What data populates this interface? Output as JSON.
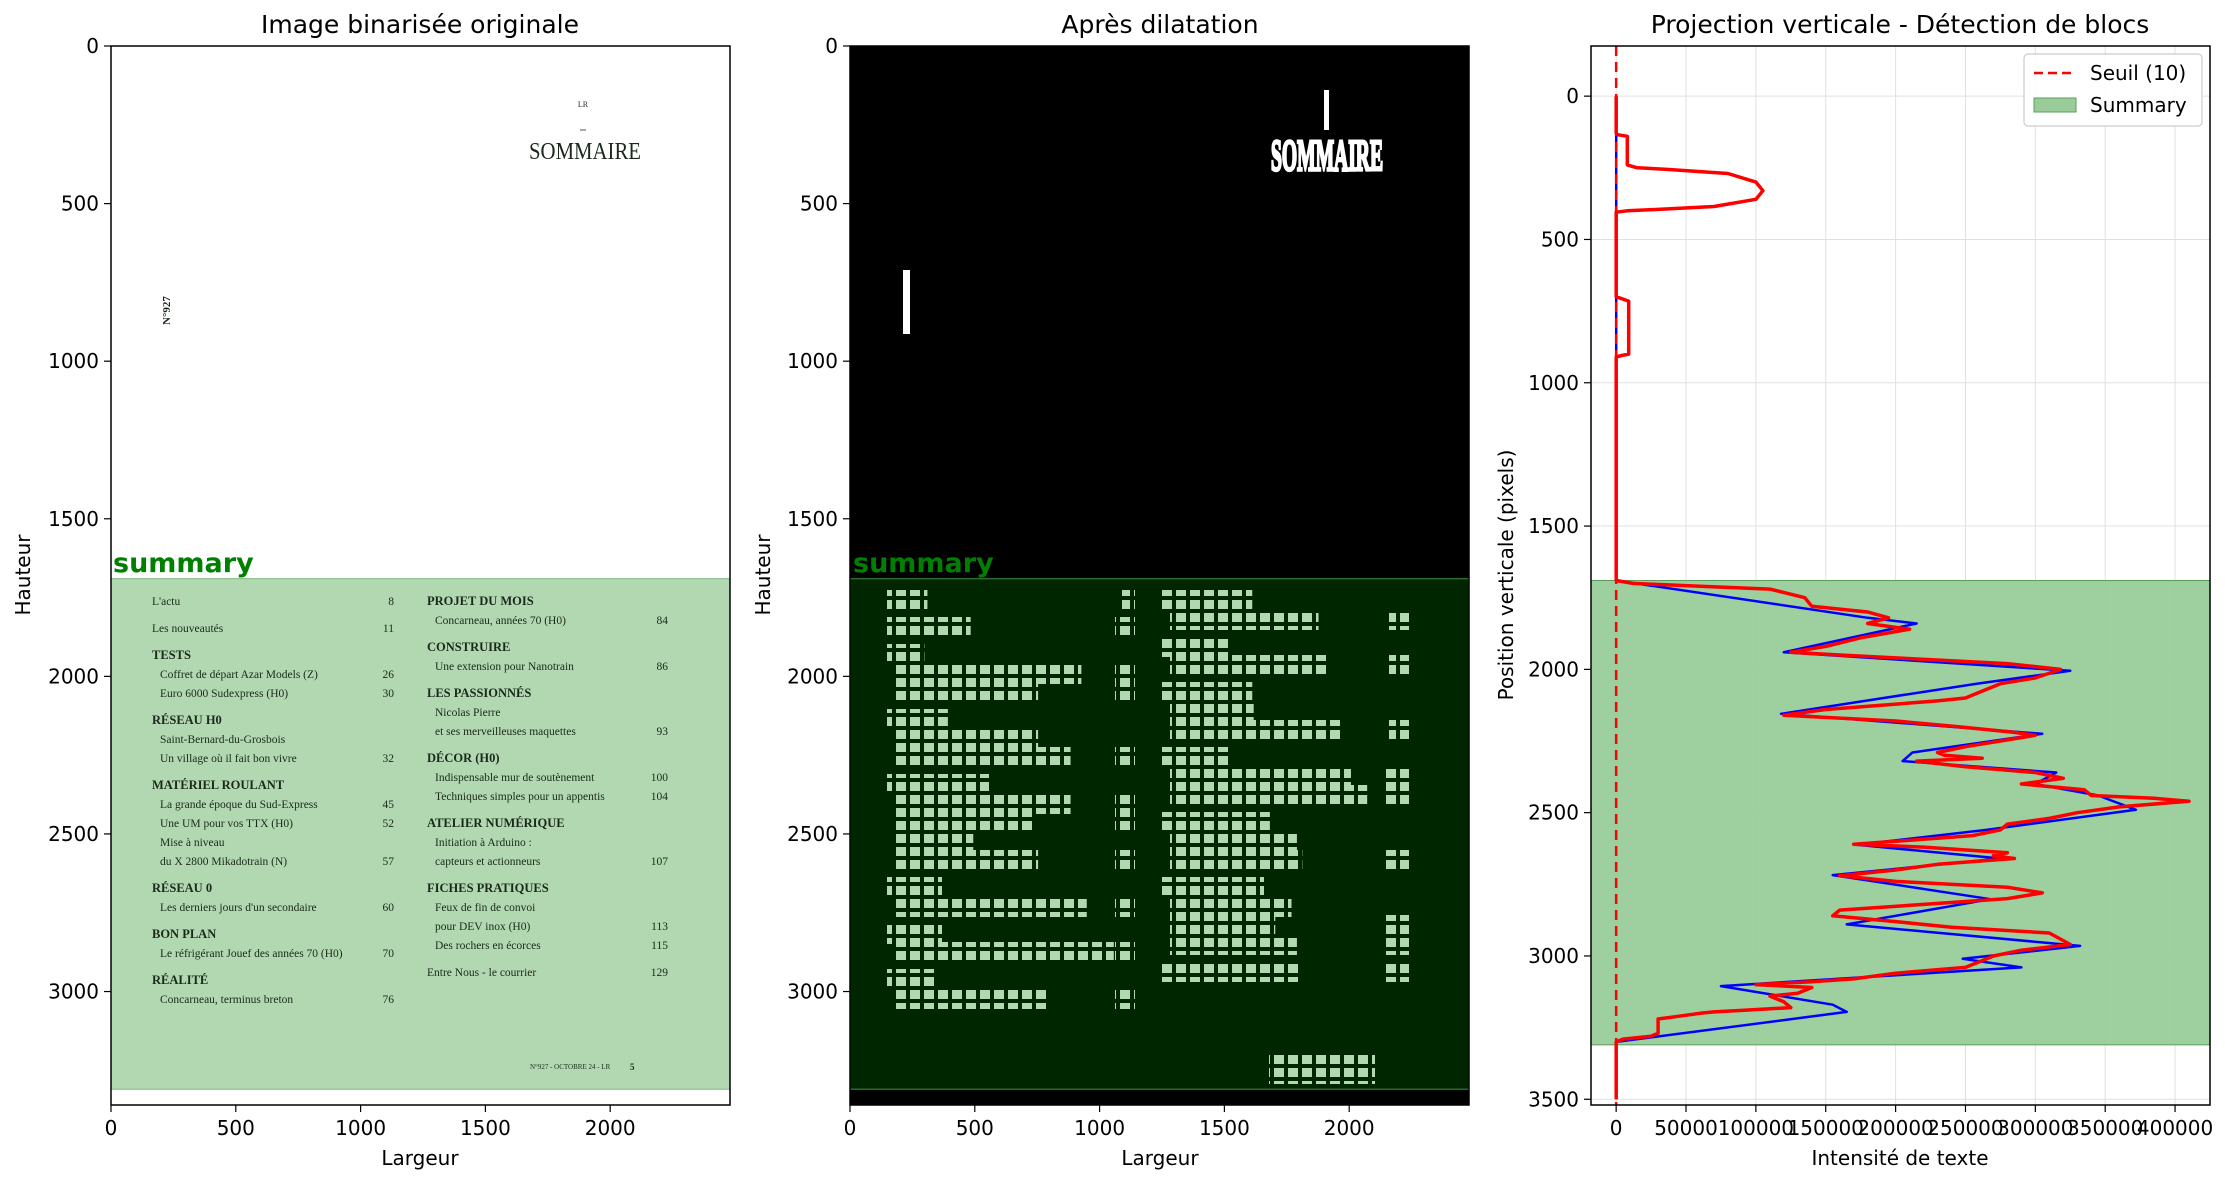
{
  "chart_data": [
    {
      "type": "image",
      "title": "Image binarisée originale",
      "xlabel": "Largeur",
      "ylabel": "Hauteur",
      "xlim": [
        0,
        2480
      ],
      "ylim": [
        3360,
        0
      ],
      "xticks": [
        "0",
        "500",
        "1000",
        "1500",
        "2000"
      ],
      "yticks": [
        "0",
        "500",
        "1000",
        "1500",
        "2000",
        "2500",
        "3000"
      ],
      "region": {
        "label": "summary",
        "y_start": 1690,
        "y_end": 3310,
        "color": "#b2d8b2"
      },
      "page": {
        "lr": "LR",
        "heading": "SOMMAIRE",
        "issue": "N°927",
        "footer": "N°927 - OCTOBRE 24 - LR",
        "footer_page": "5",
        "left_column": [
          {
            "kind": "entry",
            "text": "L'actu",
            "page": "8"
          },
          {
            "kind": "entry",
            "text": "Les nouveautés",
            "page": "11"
          },
          {
            "kind": "section",
            "text": "TESTS"
          },
          {
            "kind": "item",
            "text": "Coffret de départ Azar Models (Z)",
            "page": "26"
          },
          {
            "kind": "item",
            "text": "Euro 6000 Sudexpress (H0)",
            "page": "30"
          },
          {
            "kind": "section",
            "text": "RÉSEAU H0"
          },
          {
            "kind": "item",
            "text": "Saint-Bernard-du-Grosbois",
            "page": ""
          },
          {
            "kind": "item",
            "text": "Un village où il fait bon vivre",
            "page": "32"
          },
          {
            "kind": "section",
            "text": "MATÉRIEL ROULANT"
          },
          {
            "kind": "item",
            "text": "La grande époque du Sud-Express",
            "page": "45"
          },
          {
            "kind": "item",
            "text": "Une UM pour vos TTX (H0)",
            "page": "52"
          },
          {
            "kind": "item",
            "text": "Mise à niveau",
            "page": ""
          },
          {
            "kind": "item",
            "text": "du X 2800 Mikadotrain (N)",
            "page": "57"
          },
          {
            "kind": "section",
            "text": "RÉSEAU 0"
          },
          {
            "kind": "item",
            "text": "Les derniers jours d'un secondaire",
            "page": "60"
          },
          {
            "kind": "section",
            "text": "BON PLAN"
          },
          {
            "kind": "item",
            "text": "Le réfrigérant Jouef des années 70 (H0)",
            "page": "70"
          },
          {
            "kind": "section",
            "text": "RÉALITÉ"
          },
          {
            "kind": "item",
            "text": "Concarneau, terminus breton",
            "page": "76"
          }
        ],
        "right_column": [
          {
            "kind": "section",
            "text": "PROJET DU MOIS"
          },
          {
            "kind": "item",
            "text": "Concarneau, années 70 (H0)",
            "page": "84"
          },
          {
            "kind": "section",
            "text": "CONSTRUIRE"
          },
          {
            "kind": "item",
            "text": "Une extension pour Nanotrain",
            "page": "86"
          },
          {
            "kind": "section",
            "text": "LES PASSIONNÉS"
          },
          {
            "kind": "item",
            "text": "Nicolas Pierre",
            "page": ""
          },
          {
            "kind": "item",
            "text": "et ses merveilleuses maquettes",
            "page": "93"
          },
          {
            "kind": "section",
            "text": "DÉCOR (H0)"
          },
          {
            "kind": "item",
            "text": "Indispensable mur de soutènement",
            "page": "100"
          },
          {
            "kind": "item",
            "text": "Techniques simples pour un appentis",
            "page": "104"
          },
          {
            "kind": "section",
            "text": "ATELIER NUMÉRIQUE"
          },
          {
            "kind": "item",
            "text": "Initiation à Arduino :",
            "page": ""
          },
          {
            "kind": "item",
            "text": "capteurs et actionneurs",
            "page": "107"
          },
          {
            "kind": "section",
            "text": "FICHES PRATIQUES"
          },
          {
            "kind": "item",
            "text": "Feux de fin de convoi",
            "page": ""
          },
          {
            "kind": "item",
            "text": "pour DEV inox (H0)",
            "page": "113"
          },
          {
            "kind": "item",
            "text": "Des rochers en écorces",
            "page": "115"
          },
          {
            "kind": "entry",
            "text": "Entre Nous - le courrier",
            "page": "129"
          }
        ]
      }
    },
    {
      "type": "image",
      "title": "Après dilatation",
      "xlabel": "Largeur",
      "ylabel": "Hauteur",
      "xlim": [
        0,
        2480
      ],
      "ylim": [
        3360,
        0
      ],
      "xticks": [
        "0",
        "500",
        "1000",
        "1500",
        "2000"
      ],
      "yticks": [
        "0",
        "500",
        "1000",
        "1500",
        "2000",
        "2500",
        "3000"
      ],
      "region": {
        "label": "summary",
        "y_start": 1690,
        "y_end": 3310,
        "color": "#002600"
      },
      "heading": "SOMMAIRE"
    },
    {
      "type": "line",
      "title": "Projection verticale - Détection de blocs",
      "xlabel": "Intensité de texte",
      "ylabel": "Position verticale (pixels)",
      "xlim": [
        -18000,
        425000
      ],
      "ylim": [
        3520,
        -175
      ],
      "xticks": [
        0,
        50000,
        100000,
        150000,
        200000,
        250000,
        300000,
        350000,
        400000
      ],
      "yticks": [
        0,
        500,
        1000,
        1500,
        2000,
        2500,
        3000,
        3500
      ],
      "grid": true,
      "legend_position": "top-right",
      "threshold": {
        "name": "Seuil (10)",
        "value": 10,
        "color": "#ff0000"
      },
      "block": {
        "name": "Summary",
        "y_start": 1690,
        "y_end": 3310,
        "color": "#99cc99"
      },
      "series": [
        {
          "color": "#ff0000",
          "points": [
            [
              0,
              0
            ],
            [
              0,
              130
            ],
            [
              1500,
              135
            ],
            [
              8000,
              140
            ],
            [
              8000,
              240
            ],
            [
              15000,
              250
            ],
            [
              35000,
              255
            ],
            [
              80000,
              270
            ],
            [
              100000,
              300
            ],
            [
              105000,
              330
            ],
            [
              100000,
              360
            ],
            [
              70000,
              385
            ],
            [
              30000,
              395
            ],
            [
              8000,
              400
            ],
            [
              0,
              405
            ],
            [
              0,
              700
            ],
            [
              3000,
              705
            ],
            [
              9000,
              715
            ],
            [
              9000,
              900
            ],
            [
              4000,
              905
            ],
            [
              0,
              910
            ],
            [
              0,
              1690
            ],
            [
              12000,
              1700
            ],
            [
              60000,
              1710
            ],
            [
              110000,
              1720
            ],
            [
              135000,
              1750
            ],
            [
              140000,
              1780
            ],
            [
              180000,
              1800
            ],
            [
              195000,
              1820
            ],
            [
              180000,
              1840
            ],
            [
              210000,
              1860
            ],
            [
              175000,
              1890
            ],
            [
              150000,
              1920
            ],
            [
              125000,
              1940
            ],
            [
              160000,
              1950
            ],
            [
              200000,
              1960
            ],
            [
              280000,
              1980
            ],
            [
              318000,
              2000
            ],
            [
              300000,
              2030
            ],
            [
              275000,
              2050
            ],
            [
              260000,
              2080
            ],
            [
              250000,
              2100
            ],
            [
              230000,
              2110
            ],
            [
              150000,
              2140
            ],
            [
              120000,
              2160
            ],
            [
              200000,
              2180
            ],
            [
              245000,
              2200
            ],
            [
              285000,
              2220
            ],
            [
              300000,
              2230
            ],
            [
              275000,
              2250
            ],
            [
              250000,
              2270
            ],
            [
              230000,
              2290
            ],
            [
              235000,
              2300
            ],
            [
              262000,
              2310
            ],
            [
              215000,
              2320
            ],
            [
              250000,
              2340
            ],
            [
              300000,
              2360
            ],
            [
              320000,
              2380
            ],
            [
              290000,
              2400
            ],
            [
              335000,
              2420
            ],
            [
              340000,
              2440
            ],
            [
              385000,
              2450
            ],
            [
              410000,
              2460
            ],
            [
              360000,
              2480
            ],
            [
              330000,
              2500
            ],
            [
              310000,
              2520
            ],
            [
              280000,
              2540
            ],
            [
              275000,
              2560
            ],
            [
              255000,
              2580
            ],
            [
              200000,
              2600
            ],
            [
              170000,
              2610
            ],
            [
              220000,
              2620
            ],
            [
              280000,
              2640
            ],
            [
              270000,
              2650
            ],
            [
              285000,
              2660
            ],
            [
              230000,
              2680
            ],
            [
              200000,
              2700
            ],
            [
              160000,
              2720
            ],
            [
              200000,
              2740
            ],
            [
              280000,
              2760
            ],
            [
              305000,
              2780
            ],
            [
              280000,
              2800
            ],
            [
              220000,
              2820
            ],
            [
              160000,
              2840
            ],
            [
              155000,
              2860
            ],
            [
              200000,
              2880
            ],
            [
              240000,
              2900
            ],
            [
              310000,
              2920
            ],
            [
              325000,
              2960
            ],
            [
              290000,
              2980
            ],
            [
              270000,
              3000
            ],
            [
              260000,
              3020
            ],
            [
              250000,
              3040
            ],
            [
              200000,
              3060
            ],
            [
              170000,
              3080
            ],
            [
              140000,
              3090
            ],
            [
              100000,
              3100
            ],
            [
              140000,
              3110
            ],
            [
              130000,
              3130
            ],
            [
              110000,
              3140
            ],
            [
              120000,
              3160
            ],
            [
              125000,
              3180
            ],
            [
              90000,
              3190
            ],
            [
              70000,
              3195
            ],
            [
              60000,
              3200
            ],
            [
              45000,
              3210
            ],
            [
              30000,
              3220
            ],
            [
              30000,
              3270
            ],
            [
              25000,
              3280
            ],
            [
              5000,
              3290
            ],
            [
              0,
              3300
            ],
            [
              0,
              3500
            ]
          ]
        },
        {
          "color": "#0000ff",
          "points": [
            [
              0,
              0
            ],
            [
              0,
              1690
            ],
            [
              180000,
              1820
            ],
            [
              215000,
              1840
            ],
            [
              120000,
              1940
            ],
            [
              325000,
              2005
            ],
            [
              258000,
              2050
            ],
            [
              118000,
              2155
            ],
            [
              305000,
              2225
            ],
            [
              212000,
              2290
            ],
            [
              205000,
              2320
            ],
            [
              315000,
              2360
            ],
            [
              300000,
              2400
            ],
            [
              345000,
              2440
            ],
            [
              372000,
              2490
            ],
            [
              265000,
              2560
            ],
            [
              172000,
              2612
            ],
            [
              275000,
              2660
            ],
            [
              155000,
              2718
            ],
            [
              268000,
              2802
            ],
            [
              165000,
              2890
            ],
            [
              332000,
              2965
            ],
            [
              248000,
              3010
            ],
            [
              290000,
              3040
            ],
            [
              75000,
              3105
            ],
            [
              155000,
              3170
            ],
            [
              165000,
              3195
            ],
            [
              0,
              3300
            ],
            [
              0,
              3500
            ]
          ]
        }
      ]
    }
  ]
}
